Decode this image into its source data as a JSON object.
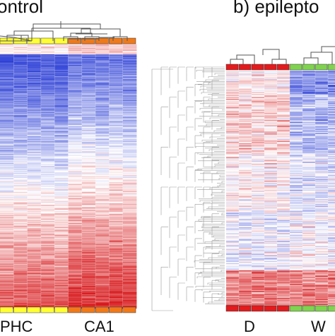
{
  "panels": {
    "a": {
      "label": "ontrol"
    },
    "b": {
      "label": "b) epilepto"
    }
  },
  "colors": {
    "high": "#d7191c",
    "mid": "#ffffff",
    "low": "#2c3fd6",
    "group_phc": "#ffff33",
    "group_ca1": "#f07a1a",
    "group_d": "#e41a1c",
    "group_w": "#7fd34e"
  },
  "chart_data": [
    {
      "type": "heatmap",
      "title": "ontrol",
      "x_groups": [
        "PHC",
        "CA1"
      ],
      "columns": [
        {
          "group": "PHC"
        },
        {
          "group": "PHC"
        },
        {
          "group": "PHC"
        },
        {
          "group": "PHC"
        },
        {
          "group": "PHC"
        },
        {
          "group": "CA1"
        },
        {
          "group": "CA1"
        },
        {
          "group": "CA1"
        },
        {
          "group": "CA1"
        },
        {
          "group": "CA1"
        }
      ],
      "color_scale": [
        "low",
        "mid",
        "high"
      ],
      "pattern": "blue (low) at top rows, transitioning through white to red (high) at bottom rows",
      "has_column_dendrogram": true
    },
    {
      "type": "heatmap",
      "title": "b) epilepto",
      "x_groups": [
        "D",
        "W"
      ],
      "columns": [
        {
          "group": "D"
        },
        {
          "group": "D"
        },
        {
          "group": "D"
        },
        {
          "group": "D"
        },
        {
          "group": "D"
        },
        {
          "group": "W"
        },
        {
          "group": "W"
        },
        {
          "group": "W"
        },
        {
          "group": "W"
        },
        {
          "group": "W"
        }
      ],
      "color_scale": [
        "low",
        "mid",
        "high"
      ],
      "pattern": "mixed red/blue bands, red at top and bottom, blue band in middle of W columns",
      "has_column_dendrogram": true,
      "has_row_dendrogram": true
    }
  ]
}
